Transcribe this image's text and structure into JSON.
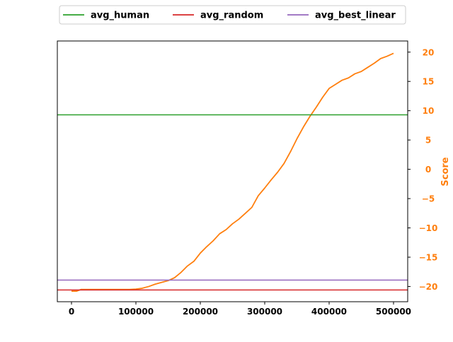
{
  "chart_data": {
    "type": "line",
    "title": "",
    "xlabel": "",
    "ylabel": "Score",
    "xlim": [
      -22000,
      522000
    ],
    "ylim": [
      -22.6,
      21.9
    ],
    "x_ticks": [
      0,
      100000,
      200000,
      300000,
      400000,
      500000
    ],
    "x_tick_labels": [
      "0",
      "100000",
      "200000",
      "300000",
      "400000",
      "500000"
    ],
    "y_ticks": [
      -20,
      -15,
      -10,
      -5,
      0,
      5,
      10,
      15,
      20
    ],
    "y_tick_labels": [
      "−20",
      "−15",
      "−10",
      "−5",
      "0",
      "5",
      "10",
      "15",
      "20"
    ],
    "y_axis_position": "right",
    "grid": false,
    "legend": {
      "placement": "top, above plot",
      "columns": 3,
      "entries": [
        {
          "label": "avg_human",
          "color": "#2ca02c"
        },
        {
          "label": "avg_random",
          "color": "#d62728"
        },
        {
          "label": "avg_best_linear",
          "color": "#9467bd"
        }
      ]
    },
    "series": [
      {
        "color": "#ff7f0e",
        "kind": "line",
        "x": [
          0,
          8000,
          15000,
          25000,
          50000,
          75000,
          90000,
          100000,
          110000,
          120000,
          130000,
          140000,
          150000,
          160000,
          170000,
          180000,
          190000,
          200000,
          210000,
          220000,
          230000,
          240000,
          250000,
          260000,
          270000,
          280000,
          290000,
          300000,
          310000,
          320000,
          330000,
          340000,
          350000,
          360000,
          370000,
          380000,
          390000,
          400000,
          410000,
          420000,
          430000,
          440000,
          450000,
          460000,
          470000,
          480000,
          490000,
          500000
        ],
        "values": [
          -20.8,
          -20.8,
          -20.5,
          -20.5,
          -20.5,
          -20.5,
          -20.5,
          -20.45,
          -20.3,
          -20.0,
          -19.6,
          -19.3,
          -19.0,
          -18.5,
          -17.6,
          -16.5,
          -15.7,
          -14.3,
          -13.2,
          -12.2,
          -11.0,
          -10.3,
          -9.3,
          -8.5,
          -7.5,
          -6.5,
          -4.5,
          -3.2,
          -1.8,
          -0.5,
          1.0,
          3.0,
          5.2,
          7.2,
          9.0,
          10.6,
          12.3,
          13.8,
          14.5,
          15.2,
          15.6,
          16.3,
          16.7,
          17.4,
          18.1,
          18.9,
          19.3,
          19.8
        ]
      },
      {
        "name": "avg_human",
        "color": "#2ca02c",
        "kind": "hline",
        "value": 9.3
      },
      {
        "name": "avg_random",
        "color": "#d62728",
        "kind": "hline",
        "value": -20.6
      },
      {
        "name": "avg_best_linear",
        "color": "#9467bd",
        "kind": "hline",
        "value": -18.9
      }
    ],
    "tick_color": "#ff7f0e",
    "ylabel_color": "#ff7f0e"
  }
}
